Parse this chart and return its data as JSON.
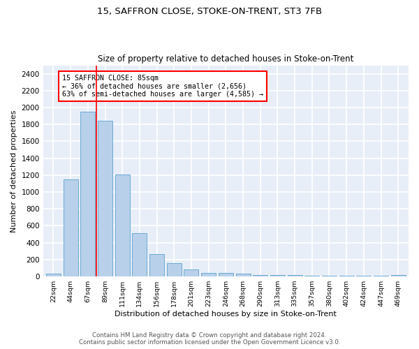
{
  "title1": "15, SAFFRON CLOSE, STOKE-ON-TRENT, ST3 7FB",
  "title2": "Size of property relative to detached houses in Stoke-on-Trent",
  "xlabel": "Distribution of detached houses by size in Stoke-on-Trent",
  "ylabel": "Number of detached properties",
  "categories": [
    "22sqm",
    "44sqm",
    "67sqm",
    "89sqm",
    "111sqm",
    "134sqm",
    "156sqm",
    "178sqm",
    "201sqm",
    "223sqm",
    "246sqm",
    "268sqm",
    "290sqm",
    "313sqm",
    "335sqm",
    "357sqm",
    "380sqm",
    "402sqm",
    "424sqm",
    "447sqm",
    "469sqm"
  ],
  "values": [
    30,
    1150,
    1950,
    1840,
    1210,
    510,
    265,
    155,
    85,
    45,
    40,
    35,
    20,
    20,
    15,
    10,
    5,
    5,
    5,
    5,
    20
  ],
  "bar_color": "#b8d0ea",
  "bar_edge_color": "#6aaad4",
  "vline_x": 2.5,
  "annotation_text_line1": "15 SAFFRON CLOSE: 85sqm",
  "annotation_text_line2": "← 36% of detached houses are smaller (2,656)",
  "annotation_text_line3": "63% of semi-detached houses are larger (4,585) →",
  "annotation_box_color": "white",
  "annotation_box_edge_color": "red",
  "vline_color": "red",
  "ylim": [
    0,
    2500
  ],
  "yticks": [
    0,
    200,
    400,
    600,
    800,
    1000,
    1200,
    1400,
    1600,
    1800,
    2000,
    2200,
    2400
  ],
  "background_color": "#e8eef8",
  "grid_color": "white",
  "footer_line1": "Contains HM Land Registry data © Crown copyright and database right 2024.",
  "footer_line2": "Contains public sector information licensed under the Open Government Licence v3.0."
}
